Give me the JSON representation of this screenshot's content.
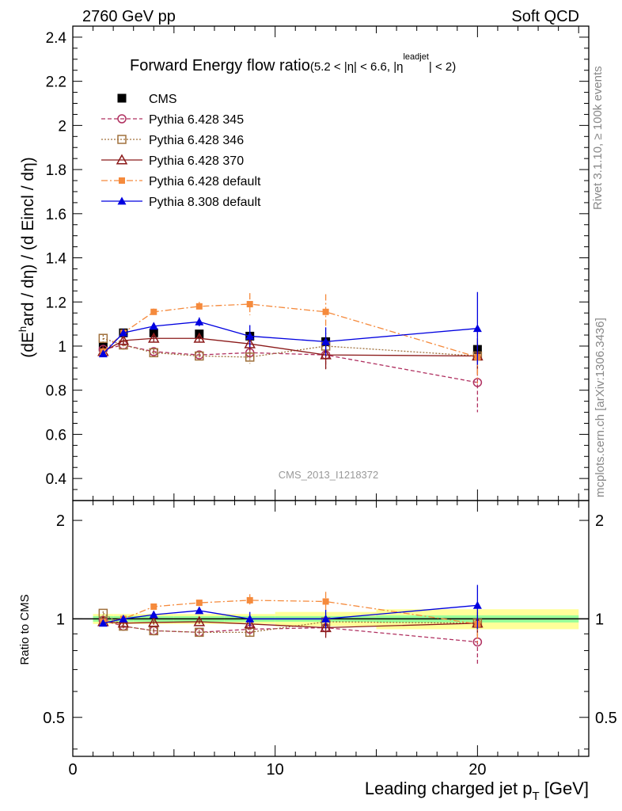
{
  "header": {
    "left": "2760 GeV pp",
    "right": "Soft QCD",
    "rivet_stamp": "Rivet 3.1.10, ≥ 100k events",
    "mcplots_stamp": "mcplots.cern.ch [arXiv:1306.3436]",
    "analysis_id": "CMS_2013_I1218372"
  },
  "chart_data": [
    {
      "panel": "main",
      "type": "scatter",
      "title": "Forward Energy flow ratio",
      "title_cut": "(5.2 < |η| < 6.6, |η",
      "title_cut_sup": "leadjet",
      "title_cut_end": "| < 2)",
      "ylabel": "(dE^hard / dη) / (d Eincl / dη)",
      "ylim": [
        0.3,
        2.45
      ],
      "yticks": [
        0.4,
        0.6,
        0.8,
        1,
        1.2,
        1.4,
        1.6,
        1.8,
        2,
        2.2,
        2.4
      ],
      "ytick_labels": [
        "0.4",
        "0.6",
        "0.8",
        "1",
        "1.2",
        "1.4",
        "1.6",
        "1.8",
        "2",
        "2.2",
        "2.4"
      ],
      "xlim": [
        0,
        25.5
      ],
      "legend_position": "top-left",
      "data_band": {
        "x_edges": [
          1,
          2,
          3,
          5,
          7.5,
          10,
          15,
          25
        ],
        "inner_half_width": [
          0.02,
          0.02,
          0.02,
          0.02,
          0.02,
          0.02,
          0.025
        ],
        "outer_half_width": [
          0.035,
          0.035,
          0.035,
          0.035,
          0.035,
          0.05,
          0.07
        ]
      },
      "series": [
        {
          "name": "CMS",
          "style": "cms",
          "color": "#000000",
          "x": [
            1.5,
            2.5,
            4,
            6.25,
            8.75,
            12.5,
            20
          ],
          "y": [
            0.995,
            1.06,
            1.06,
            1.055,
            1.045,
            1.02,
            0.985
          ],
          "err": [
            0.01,
            0.01,
            0.01,
            0.01,
            0.02,
            0.02,
            0.03
          ]
        },
        {
          "name": "Pythia 6.428 345",
          "style": "p345",
          "color": "#b03060",
          "x": [
            1.5,
            2.5,
            4,
            6.25,
            8.75,
            12.5,
            20
          ],
          "y": [
            0.985,
            1.005,
            0.975,
            0.96,
            0.97,
            0.96,
            0.835
          ],
          "err": [
            0.015,
            0.015,
            0.015,
            0.015,
            0.03,
            0.06,
            0.135
          ]
        },
        {
          "name": "Pythia 6.428 346",
          "style": "p346",
          "color": "#a0703c",
          "x": [
            1.5,
            2.5,
            4,
            6.25,
            8.75,
            12.5,
            20
          ],
          "y": [
            1.035,
            1.005,
            0.97,
            0.955,
            0.95,
            1.0,
            0.955
          ],
          "err": [
            0.015,
            0.015,
            0.015,
            0.015,
            0.03,
            0.06,
            0.08
          ]
        },
        {
          "name": "Pythia 6.428 370",
          "style": "p370",
          "color": "#8b1a1a",
          "x": [
            1.5,
            2.5,
            4,
            6.25,
            8.75,
            12.5,
            20
          ],
          "y": [
            0.975,
            1.025,
            1.035,
            1.035,
            1.01,
            0.96,
            0.955
          ],
          "err": [
            0.015,
            0.015,
            0.015,
            0.015,
            0.03,
            0.065,
            0.08
          ]
        },
        {
          "name": "Pythia 6.428 default",
          "style": "p6def",
          "color": "#f58a3c",
          "x": [
            1.5,
            2.5,
            4,
            6.25,
            8.75,
            12.5,
            20
          ],
          "y": [
            0.975,
            1.06,
            1.155,
            1.18,
            1.19,
            1.155,
            0.95
          ],
          "err": [
            0.015,
            0.015,
            0.015,
            0.02,
            0.05,
            0.08,
            0.12
          ]
        },
        {
          "name": "Pythia 8.308 default",
          "style": "p8def",
          "color": "#0000e0",
          "x": [
            1.5,
            2.5,
            4,
            6.25,
            8.75,
            12.5,
            20
          ],
          "y": [
            0.965,
            1.06,
            1.09,
            1.11,
            1.045,
            1.02,
            1.08
          ],
          "err": [
            0.015,
            0.015,
            0.015,
            0.02,
            0.05,
            0.065,
            0.165
          ]
        }
      ]
    },
    {
      "panel": "ratio",
      "type": "scatter",
      "ylabel": "Ratio to CMS",
      "xlabel": "Leading charged jet p",
      "xlabel_sub": "T",
      "xlabel_unit": " [GeV]",
      "xlim": [
        0,
        25.5
      ],
      "xticks": [
        0,
        10,
        20
      ],
      "xtick_labels": [
        "0",
        "10",
        "20"
      ],
      "ylim": [
        0.38,
        2.3
      ],
      "yscale": "log",
      "yticks": [
        0.5,
        1,
        2
      ],
      "ytick_labels": [
        "0.5",
        "1",
        "2"
      ],
      "series": [
        {
          "name": "Pythia 6.428 345",
          "style": "p345",
          "color": "#b03060",
          "x": [
            1.5,
            2.5,
            4,
            6.25,
            8.75,
            12.5,
            20
          ],
          "y": [
            0.99,
            0.95,
            0.92,
            0.91,
            0.93,
            0.94,
            0.85
          ],
          "err": [
            0.015,
            0.015,
            0.015,
            0.015,
            0.03,
            0.06,
            0.13
          ]
        },
        {
          "name": "Pythia 6.428 346",
          "style": "p346",
          "color": "#a0703c",
          "x": [
            1.5,
            2.5,
            4,
            6.25,
            8.75,
            12.5,
            20
          ],
          "y": [
            1.04,
            0.95,
            0.92,
            0.91,
            0.91,
            0.98,
            0.97
          ],
          "err": [
            0.015,
            0.015,
            0.015,
            0.015,
            0.03,
            0.06,
            0.08
          ]
        },
        {
          "name": "Pythia 6.428 370",
          "style": "p370",
          "color": "#8b1a1a",
          "x": [
            1.5,
            2.5,
            4,
            6.25,
            8.75,
            12.5,
            20
          ],
          "y": [
            0.98,
            0.97,
            0.975,
            0.98,
            0.965,
            0.94,
            0.97
          ],
          "err": [
            0.015,
            0.015,
            0.015,
            0.015,
            0.03,
            0.065,
            0.08
          ]
        },
        {
          "name": "Pythia 6.428 default",
          "style": "p6def",
          "color": "#f58a3c",
          "x": [
            1.5,
            2.5,
            4,
            6.25,
            8.75,
            12.5,
            20
          ],
          "y": [
            0.98,
            1.0,
            1.09,
            1.12,
            1.14,
            1.13,
            0.965
          ],
          "err": [
            0.015,
            0.015,
            0.015,
            0.02,
            0.05,
            0.08,
            0.12
          ]
        },
        {
          "name": "Pythia 8.308 default",
          "style": "p8def",
          "color": "#0000e0",
          "x": [
            1.5,
            2.5,
            4,
            6.25,
            8.75,
            12.5,
            20
          ],
          "y": [
            0.97,
            1.0,
            1.03,
            1.06,
            1.0,
            1.0,
            1.1
          ],
          "err": [
            0.015,
            0.015,
            0.015,
            0.02,
            0.05,
            0.065,
            0.17
          ]
        }
      ]
    }
  ]
}
